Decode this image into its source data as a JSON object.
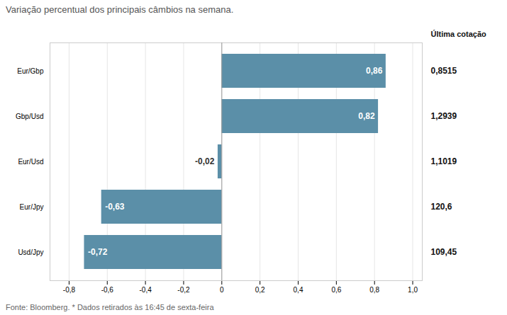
{
  "chart_data": {
    "type": "bar",
    "orientation": "horizontal",
    "subtitle": "Variação percentual dos principais câmbios na semana.",
    "categories": [
      "Eur/Gbp",
      "Gbp/Usd",
      "Eur/Usd",
      "Eur/Jpy",
      "Usd/Jpy"
    ],
    "values": [
      0.86,
      0.82,
      -0.02,
      -0.63,
      -0.72
    ],
    "value_labels": [
      "0,86",
      "0,82",
      "-0,02",
      "-0,63",
      "-0,72"
    ],
    "data_labels": true,
    "color": "#5b8fa8",
    "xlim": [
      -0.9,
      1.05
    ],
    "xticks": [
      {
        "value": -0.8,
        "label": "-0,8"
      },
      {
        "value": -0.6,
        "label": "-0,6"
      },
      {
        "value": -0.4,
        "label": "-0,4"
      },
      {
        "value": -0.2,
        "label": "-0,2"
      },
      0,
      {
        "value": 0.2,
        "label": "0,2"
      },
      {
        "value": 0.4,
        "label": "0,4"
      },
      {
        "value": 0.6,
        "label": "0,6"
      },
      {
        "value": 0.8,
        "label": "0,8"
      },
      {
        "value": 1.0,
        "label": "1,0"
      }
    ],
    "grid": true,
    "annotations": [
      {
        "header": "Última cotação",
        "values": [
          "0,8515",
          "1,2939",
          "1,1019",
          "120,6",
          "109,45"
        ]
      }
    ],
    "caption": "Fonte: Bloomberg.  * Dados retirados às 16:45 de sexta-feira"
  }
}
